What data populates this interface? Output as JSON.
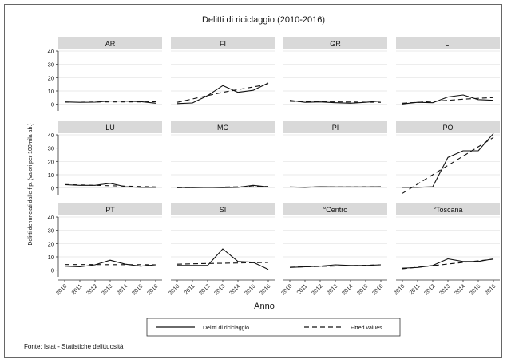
{
  "chart_data": {
    "type": "line",
    "title": "Delitti di riciclaggio (2010-2016)",
    "xlabel": "Anno",
    "ylabel": "Delitti denunciati dalle f.p. (valori per 100mila ab.)",
    "x": [
      "2010",
      "2011",
      "2012",
      "2013",
      "2014",
      "2015",
      "2016"
    ],
    "ylim": [
      -5,
      40
    ],
    "yticks": [
      0,
      10,
      20,
      30,
      40
    ],
    "grid": true,
    "legend_position": "bottom",
    "legend": [
      "Delitti di riciclaggio",
      "Fitted values"
    ],
    "panels": [
      {
        "name": "AR",
        "series": [
          {
            "name": "Delitti di riciclaggio",
            "values": [
              1.8,
              1.5,
              1.6,
              2.5,
              2.4,
              2.0,
              0.8
            ]
          },
          {
            "name": "Fitted values",
            "values": [
              1.6,
              1.6,
              1.7,
              1.8,
              1.8,
              1.8,
              1.9
            ]
          }
        ]
      },
      {
        "name": "FI",
        "series": [
          {
            "name": "Delitti di riciclaggio",
            "values": [
              0.5,
              1.0,
              6.5,
              14.0,
              9.0,
              10.5,
              16.0
            ]
          },
          {
            "name": "Fitted values",
            "values": [
              1.5,
              4.0,
              6.5,
              9.0,
              11.0,
              13.0,
              15.0
            ]
          }
        ]
      },
      {
        "name": "GR",
        "series": [
          {
            "name": "Delitti di riciclaggio",
            "values": [
              3.0,
              1.5,
              1.8,
              1.2,
              0.8,
              1.5,
              2.5
            ]
          },
          {
            "name": "Fitted values",
            "values": [
              2.2,
              2.0,
              1.9,
              1.8,
              1.7,
              1.6,
              1.5
            ]
          }
        ]
      },
      {
        "name": "LI",
        "series": [
          {
            "name": "Delitti di riciclaggio",
            "values": [
              0.2,
              1.5,
              1.2,
              5.5,
              7.0,
              3.5,
              3.0
            ]
          },
          {
            "name": "Fitted values",
            "values": [
              0.8,
              1.5,
              2.2,
              3.0,
              3.8,
              4.5,
              5.0
            ]
          }
        ]
      },
      {
        "name": "LU",
        "series": [
          {
            "name": "Delitti di riciclaggio",
            "values": [
              2.5,
              2.0,
              2.0,
              3.5,
              1.0,
              0.5,
              0.5
            ]
          },
          {
            "name": "Fitted values",
            "values": [
              2.6,
              2.3,
              2.0,
              1.7,
              1.4,
              1.1,
              0.8
            ]
          }
        ]
      },
      {
        "name": "MC",
        "series": [
          {
            "name": "Delitti di riciclaggio",
            "values": [
              0.5,
              0.3,
              0.5,
              0.3,
              0.5,
              2.0,
              0.8
            ]
          },
          {
            "name": "Fitted values",
            "values": [
              0.2,
              0.4,
              0.5,
              0.7,
              0.9,
              1.0,
              1.2
            ]
          }
        ]
      },
      {
        "name": "PI",
        "series": [
          {
            "name": "Delitti di riciclaggio",
            "values": [
              0.8,
              0.5,
              1.0,
              0.8,
              0.8,
              0.8,
              1.0
            ]
          },
          {
            "name": "Fitted values",
            "values": [
              0.7,
              0.7,
              0.8,
              0.8,
              0.8,
              0.9,
              0.9
            ]
          }
        ]
      },
      {
        "name": "PO",
        "series": [
          {
            "name": "Delitti di riciclaggio",
            "values": [
              0.5,
              0.5,
              1.0,
              23.0,
              28.0,
              28.0,
              41.0
            ]
          },
          {
            "name": "Fitted values",
            "values": [
              -4.0,
              3.0,
              10.0,
              17.0,
              24.0,
              31.0,
              38.0
            ]
          }
        ]
      },
      {
        "name": "PT",
        "series": [
          {
            "name": "Delitti di riciclaggio",
            "values": [
              3.0,
              2.5,
              4.0,
              7.5,
              4.5,
              3.0,
              4.0
            ]
          },
          {
            "name": "Fitted values",
            "values": [
              4.2,
              4.2,
              4.2,
              4.1,
              4.1,
              4.1,
              4.0
            ]
          }
        ]
      },
      {
        "name": "SI",
        "series": [
          {
            "name": "Delitti di riciclaggio",
            "values": [
              3.5,
              3.5,
              3.5,
              16.0,
              6.5,
              6.0,
              0.5
            ]
          },
          {
            "name": "Fitted values",
            "values": [
              4.5,
              4.8,
              5.0,
              5.2,
              5.4,
              5.6,
              5.8
            ]
          }
        ]
      },
      {
        "name": "°Centro",
        "series": [
          {
            "name": "Delitti di riciclaggio",
            "values": [
              2.0,
              2.5,
              3.0,
              4.0,
              3.5,
              3.5,
              4.0
            ]
          },
          {
            "name": "Fitted values",
            "values": [
              2.2,
              2.5,
              2.8,
              3.1,
              3.4,
              3.7,
              4.0
            ]
          }
        ]
      },
      {
        "name": "°Toscana",
        "series": [
          {
            "name": "Delitti di riciclaggio",
            "values": [
              1.5,
              2.0,
              3.5,
              8.5,
              6.5,
              6.5,
              8.5
            ]
          },
          {
            "name": "Fitted values",
            "values": [
              1.0,
              2.2,
              3.4,
              4.6,
              5.8,
              7.0,
              8.2
            ]
          }
        ]
      }
    ]
  },
  "source_note": "Fonte: Istat - Statistiche delittuosità"
}
